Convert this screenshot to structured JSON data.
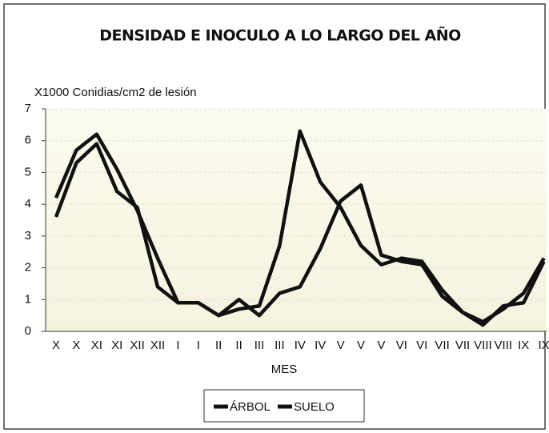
{
  "chart_data": {
    "type": "line",
    "title": "DENSIDAD E INOCULO A LO LARGO DEL AÑO",
    "y_label": "X1000 Conidias/cm2 de lesión",
    "x_label": "MES",
    "categories": [
      "X",
      "X",
      "XI",
      "XI",
      "XII",
      "XII",
      "I",
      "I",
      "II",
      "II",
      "III",
      "III",
      "IV",
      "IV",
      "V",
      "V",
      "V",
      "VI",
      "VI",
      "VII",
      "VII",
      "VIII",
      "VIII",
      "IX",
      "IX"
    ],
    "series": [
      {
        "name": "ÁRBOL",
        "color": "#111111",
        "values": [
          4.2,
          5.7,
          6.2,
          5.1,
          3.8,
          2.3,
          0.9,
          0.9,
          0.5,
          0.7,
          0.8,
          2.7,
          6.3,
          4.7,
          3.9,
          2.7,
          2.1,
          2.3,
          2.2,
          1.3,
          0.6,
          0.2,
          0.8,
          0.9,
          2.2
        ]
      },
      {
        "name": "SUELO",
        "color": "#111111",
        "values": [
          3.6,
          5.3,
          5.9,
          4.4,
          3.9,
          1.4,
          0.9,
          0.9,
          0.5,
          1.0,
          0.5,
          1.2,
          1.4,
          2.6,
          4.1,
          4.6,
          2.4,
          2.2,
          2.1,
          1.1,
          0.6,
          0.3,
          0.7,
          1.2,
          2.3
        ]
      }
    ],
    "ylim": [
      0,
      7
    ],
    "yticks": [
      0,
      1,
      2,
      3,
      4,
      5,
      6,
      7
    ],
    "grid": true,
    "legend": "bottom"
  }
}
